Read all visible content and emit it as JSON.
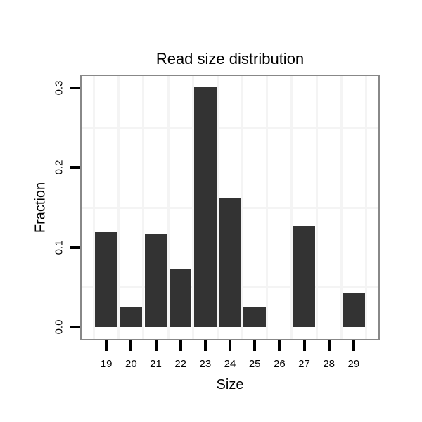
{
  "chart_data": {
    "type": "bar",
    "title": "Read size distribution",
    "xlabel": "Size",
    "ylabel": "Fraction",
    "categories": [
      19,
      20,
      21,
      22,
      23,
      24,
      25,
      26,
      27,
      28,
      29
    ],
    "values": [
      0.119,
      0.025,
      0.117,
      0.073,
      0.301,
      0.162,
      0.025,
      0,
      0.127,
      0,
      0.042
    ],
    "x_tick_labels": [
      "19",
      "20",
      "21",
      "22",
      "23",
      "24",
      "25",
      "26",
      "27",
      "28",
      "29"
    ],
    "y_ticks": [
      0.0,
      0.1,
      0.2,
      0.3
    ],
    "y_tick_labels": [
      "0.0",
      "0.1",
      "0.2",
      "0.3"
    ],
    "xlim": [
      18,
      30
    ],
    "ylim": [
      -0.015,
      0.315
    ],
    "bar_width": 0.9,
    "x_minor_gridlines": [
      18.5,
      19.5,
      20.5,
      21.5,
      22.5,
      23.5,
      24.5,
      25.5,
      26.5,
      27.5,
      28.5,
      29.5
    ],
    "y_minor_gridlines": [
      0.05,
      0.15,
      0.25
    ],
    "legend": "none",
    "grid": "minor-only",
    "colors": {
      "bar": "#333333",
      "panel_border": "#888888",
      "gridline": "#f4f4f4",
      "tick": "#000000",
      "text": "#000000",
      "background": "#ffffff"
    }
  }
}
